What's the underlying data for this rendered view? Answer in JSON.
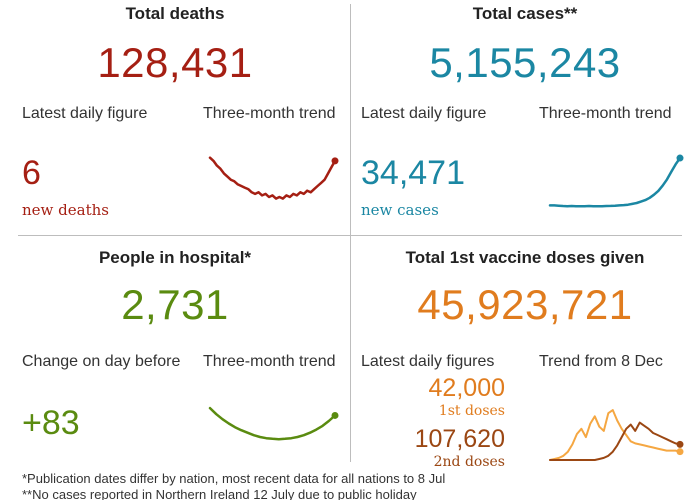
{
  "deaths": {
    "title": "Total deaths",
    "total": "128,431",
    "daily_label": "Latest daily figure",
    "trend_label": "Three-month trend",
    "daily_value": "6",
    "daily_sub": "new deaths",
    "color": "#a51f13"
  },
  "cases": {
    "title": "Total cases**",
    "total": "5,155,243",
    "daily_label": "Latest daily figure",
    "trend_label": "Three-month trend",
    "daily_value": "34,471",
    "daily_sub": "new cases",
    "color": "#1b87a3"
  },
  "hospital": {
    "title": "People in hospital*",
    "total": "2,731",
    "daily_label": "Change on day before",
    "trend_label": "Three-month trend",
    "daily_value": "+83",
    "color": "#5a8b10"
  },
  "vaccine": {
    "title": "Total 1st vaccine doses given",
    "total": "45,923,721",
    "daily_label": "Latest daily figures",
    "trend_label": "Trend from 8 Dec",
    "first_value": "42,000",
    "first_sub": "1st doses",
    "second_value": "107,620",
    "second_sub": "2nd doses",
    "first_color": "#f5a742",
    "second_color": "#9b4713"
  },
  "footnotes": {
    "line1": "*Publication dates differ by nation, most recent data for all nations to 8 Jul",
    "line2": "**No cases reported in Northern Ireland 12 July due to public holiday"
  },
  "chart_data": [
    {
      "type": "line",
      "series": [
        {
          "values": [
            62,
            60,
            57,
            55,
            52,
            50,
            48,
            47,
            45,
            44,
            43,
            42,
            40,
            39,
            40,
            38,
            39,
            37,
            38,
            36,
            37,
            36,
            38,
            37,
            39,
            38,
            40,
            39,
            41,
            40,
            42,
            44,
            46,
            48,
            52,
            56,
            60
          ]
        }
      ],
      "ylim": [
        30,
        65
      ]
    },
    {
      "type": "line",
      "series": [
        {
          "values": [
            3,
            3,
            2.8,
            2.6,
            2.5,
            2.6,
            2.5,
            2.4,
            2.5,
            2.6,
            2.5,
            2.4,
            2.5,
            2.6,
            2.7,
            2.8,
            3,
            3.2,
            3.5,
            4,
            4.6,
            5.5,
            6.5,
            8,
            10,
            12.5,
            16,
            20,
            25,
            30,
            34
          ]
        }
      ],
      "ylim": [
        0,
        36
      ]
    },
    {
      "type": "line",
      "series": [
        {
          "values": [
            60,
            50,
            42,
            35,
            29,
            24,
            20,
            16,
            13,
            11,
            10,
            9.5,
            10,
            11,
            13,
            16,
            20,
            25,
            31,
            39,
            48
          ]
        }
      ],
      "ylim": [
        0,
        65
      ]
    },
    {
      "type": "line",
      "series": [
        {
          "values": [
            0,
            1,
            2,
            4,
            8,
            15,
            25,
            30,
            22,
            35,
            42,
            32,
            28,
            45,
            48,
            38,
            30,
            24,
            18,
            16,
            15,
            14,
            13,
            12,
            11,
            10,
            9,
            9,
            9,
            8
          ]
        },
        {
          "values": [
            0,
            0,
            0,
            0,
            0,
            0,
            0,
            0,
            0,
            0,
            0,
            1,
            2,
            4,
            8,
            14,
            22,
            30,
            34,
            28,
            36,
            33,
            30,
            26,
            24,
            22,
            20,
            18,
            16,
            15
          ]
        }
      ],
      "ylim": [
        0,
        50
      ]
    }
  ]
}
